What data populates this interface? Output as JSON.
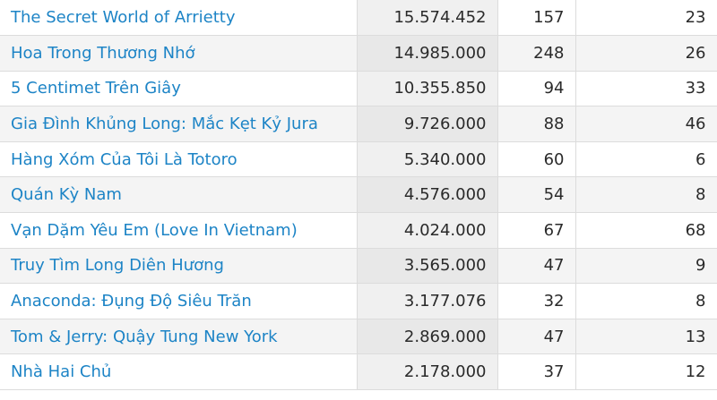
{
  "table": {
    "rows": [
      [
        "The Secret World of Arrietty",
        "15.574.452",
        "157",
        "23"
      ],
      [
        "Hoa Trong Thương Nhớ",
        "14.985.000",
        "248",
        "26"
      ],
      [
        "5 Centimet Trên Giây",
        "10.355.850",
        "94",
        "33"
      ],
      [
        "Gia Đình Khủng Long: Mắc Kẹt Kỷ Jura",
        "9.726.000",
        "88",
        "46"
      ],
      [
        "Hàng Xóm Của Tôi Là Totoro",
        "5.340.000",
        "60",
        "6"
      ],
      [
        "Quán Kỳ Nam",
        "4.576.000",
        "54",
        "8"
      ],
      [
        "Vạn Dặm Yêu Em (Love In Vietnam)",
        "4.024.000",
        "67",
        "68"
      ],
      [
        "Truy Tìm Long Diên Hương",
        "3.565.000",
        "47",
        "9"
      ],
      [
        "Anaconda: Đụng Độ Siêu Trăn",
        "3.177.076",
        "32",
        "8"
      ],
      [
        "Tom & Jerry: Quậy Tung New York",
        "2.869.000",
        "47",
        "13"
      ],
      [
        "Nhà Hai Chủ",
        "2.178.000",
        "37",
        "12"
      ]
    ]
  }
}
